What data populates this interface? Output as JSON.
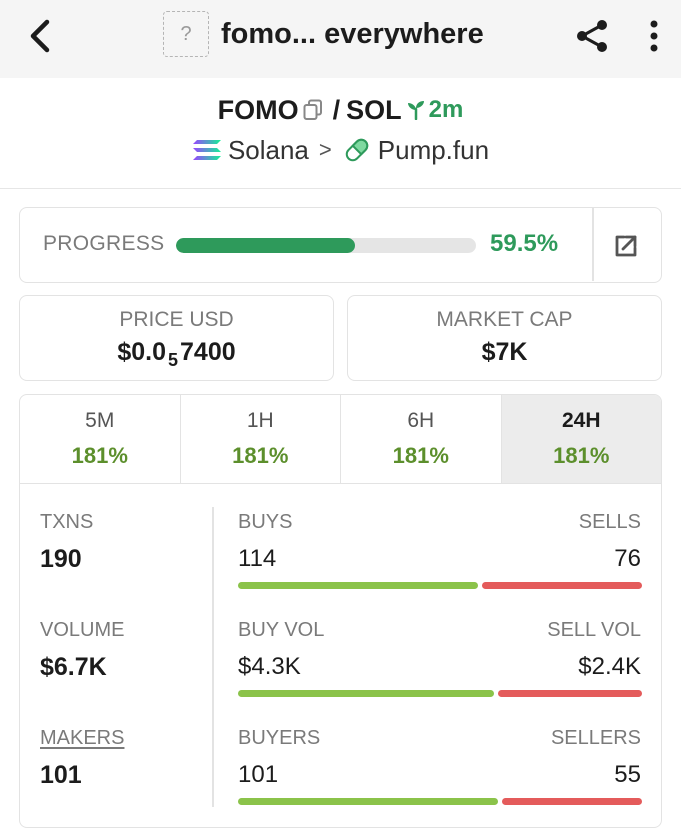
{
  "header": {
    "favicon_glyph": "?",
    "title": "fomo... everywhere"
  },
  "pair": {
    "base": "FOMO",
    "slash": "/",
    "quote": "SOL",
    "age": "2m",
    "chain": "Solana",
    "separator": ">",
    "dex": "Pump.fun"
  },
  "progress": {
    "label": "PROGRESS",
    "percent": 59.5,
    "percent_text": "59.5%"
  },
  "price": {
    "label": "PRICE USD",
    "prefix": "$0.0",
    "zeros": "5",
    "digits": "7400"
  },
  "market_cap": {
    "label": "MARKET CAP",
    "value": "$7K"
  },
  "timeframes": [
    {
      "label": "5M",
      "change": "181%",
      "active": false
    },
    {
      "label": "1H",
      "change": "181%",
      "active": false
    },
    {
      "label": "6H",
      "change": "181%",
      "active": false
    },
    {
      "label": "24H",
      "change": "181%",
      "active": true
    }
  ],
  "stats": {
    "txns": {
      "label": "TXNS",
      "value": "190"
    },
    "volume": {
      "label": "VOLUME",
      "value": "$6.7K"
    },
    "makers": {
      "label": "MAKERS",
      "value": "101"
    },
    "buys": {
      "label": "BUYS",
      "value": "114",
      "ratio": 0.6
    },
    "sells": {
      "label": "SELLS",
      "value": "76"
    },
    "buy_vol": {
      "label": "BUY VOL",
      "value": "$4.3K",
      "ratio": 0.64
    },
    "sell_vol": {
      "label": "SELL VOL",
      "value": "$2.4K"
    },
    "buyers": {
      "label": "BUYERS",
      "value": "101",
      "ratio": 0.65
    },
    "sellers": {
      "label": "SELLERS",
      "value": "55"
    }
  },
  "colors": {
    "accent_green": "#2e9a5b",
    "change_green": "#5c8f2c",
    "buy_bar": "#8bc34a",
    "sell_bar": "#e45b5b"
  }
}
